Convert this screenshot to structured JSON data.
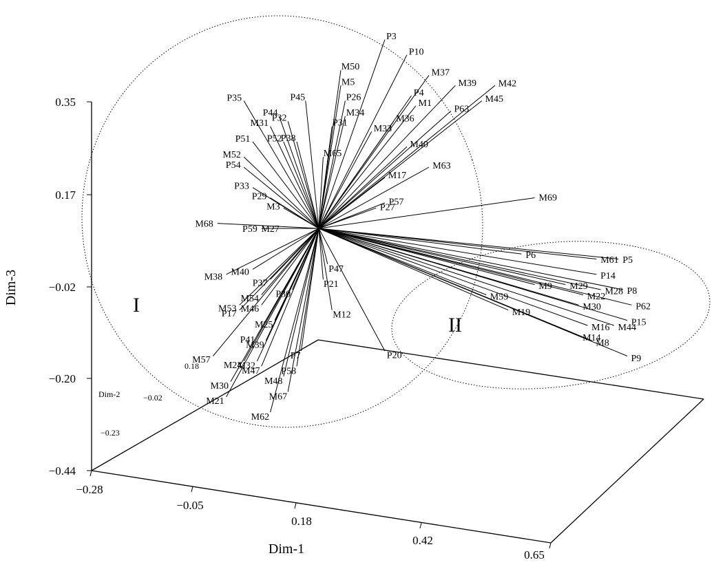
{
  "chart_data": {
    "type": "scatter",
    "projection": "3d-biplot",
    "xlabel": "Dim-1",
    "ylabel": "Dim-3",
    "zlabel": "Dim-2",
    "x_ticks": [
      "−0.28",
      "−0.05",
      "0.18",
      "0.42",
      "0.65"
    ],
    "y_ticks": [
      "0.35",
      "0.17",
      "−0.02",
      "−0.20",
      "−0.44"
    ],
    "z_ticks": [
      "0.18",
      "−0.02",
      "−0.23"
    ],
    "groups": [
      {
        "name": "I"
      },
      {
        "name": "II"
      }
    ],
    "vectors": [
      {
        "label": "P3",
        "dim1": 0.18,
        "dim3": 0.47
      },
      {
        "label": "P10",
        "dim1": 0.23,
        "dim3": 0.44
      },
      {
        "label": "M50",
        "dim1": 0.08,
        "dim3": 0.41
      },
      {
        "label": "M37",
        "dim1": 0.28,
        "dim3": 0.4
      },
      {
        "label": "M39",
        "dim1": 0.34,
        "dim3": 0.38
      },
      {
        "label": "M42",
        "dim1": 0.43,
        "dim3": 0.38
      },
      {
        "label": "M5",
        "dim1": 0.08,
        "dim3": 0.38
      },
      {
        "label": "P4",
        "dim1": 0.24,
        "dim3": 0.36
      },
      {
        "label": "M45",
        "dim1": 0.4,
        "dim3": 0.35
      },
      {
        "label": "P35",
        "dim1": -0.14,
        "dim3": 0.35
      },
      {
        "label": "P45",
        "dim1": 0.0,
        "dim3": 0.35
      },
      {
        "label": "P26",
        "dim1": 0.09,
        "dim3": 0.35
      },
      {
        "label": "M1",
        "dim1": 0.25,
        "dim3": 0.34
      },
      {
        "label": "P63",
        "dim1": 0.33,
        "dim3": 0.33
      },
      {
        "label": "P44",
        "dim1": -0.06,
        "dim3": 0.32
      },
      {
        "label": "P32",
        "dim1": -0.04,
        "dim3": 0.31
      },
      {
        "label": "M34",
        "dim1": 0.09,
        "dim3": 0.32
      },
      {
        "label": "M36",
        "dim1": 0.2,
        "dim3": 0.31
      },
      {
        "label": "M31",
        "dim1": -0.08,
        "dim3": 0.3
      },
      {
        "label": "P31",
        "dim1": 0.06,
        "dim3": 0.3
      },
      {
        "label": "M33",
        "dim1": 0.15,
        "dim3": 0.29
      },
      {
        "label": "P51",
        "dim1": -0.12,
        "dim3": 0.27
      },
      {
        "label": "P52",
        "dim1": -0.05,
        "dim3": 0.27
      },
      {
        "label": "P38",
        "dim1": -0.02,
        "dim3": 0.27
      },
      {
        "label": "M40",
        "dim1": 0.23,
        "dim3": 0.26
      },
      {
        "label": "M52",
        "dim1": -0.14,
        "dim3": 0.24
      },
      {
        "label": "M65",
        "dim1": 0.04,
        "dim3": 0.24
      },
      {
        "label": "P54",
        "dim1": -0.14,
        "dim3": 0.22
      },
      {
        "label": "M63",
        "dim1": 0.28,
        "dim3": 0.22
      },
      {
        "label": "M17",
        "dim1": 0.18,
        "dim3": 0.2
      },
      {
        "label": "P33",
        "dim1": -0.12,
        "dim3": 0.18
      },
      {
        "label": "M69",
        "dim1": 0.52,
        "dim3": 0.16
      },
      {
        "label": "P29",
        "dim1": -0.08,
        "dim3": 0.16
      },
      {
        "label": "P57",
        "dim1": 0.18,
        "dim3": 0.15
      },
      {
        "label": "M3",
        "dim1": -0.05,
        "dim3": 0.14
      },
      {
        "label": "P27",
        "dim1": 0.16,
        "dim3": 0.14
      },
      {
        "label": "M68",
        "dim1": -0.2,
        "dim3": 0.11
      },
      {
        "label": "P59",
        "dim1": -0.1,
        "dim3": 0.1
      },
      {
        "label": "M27",
        "dim1": -0.05,
        "dim3": 0.1
      },
      {
        "label": "P6",
        "dim1": 0.49,
        "dim3": 0.05
      },
      {
        "label": "P5",
        "dim1": 0.71,
        "dim3": 0.04
      },
      {
        "label": "M61",
        "dim1": 0.66,
        "dim3": 0.04
      },
      {
        "label": "P14",
        "dim1": 0.66,
        "dim3": 0.01
      },
      {
        "label": "M9",
        "dim1": 0.52,
        "dim3": -0.01
      },
      {
        "label": "M29",
        "dim1": 0.59,
        "dim3": -0.01
      },
      {
        "label": "M59",
        "dim1": 0.41,
        "dim3": -0.03
      },
      {
        "label": "P8",
        "dim1": 0.72,
        "dim3": -0.02
      },
      {
        "label": "M28",
        "dim1": 0.67,
        "dim3": -0.02
      },
      {
        "label": "M22",
        "dim1": 0.63,
        "dim3": -0.03
      },
      {
        "label": "M30",
        "dim1": 0.62,
        "dim3": -0.05
      },
      {
        "label": "P62",
        "dim1": 0.74,
        "dim3": -0.05
      },
      {
        "label": "M19",
        "dim1": 0.46,
        "dim3": -0.06
      },
      {
        "label": "P15",
        "dim1": 0.73,
        "dim3": -0.08
      },
      {
        "label": "M44",
        "dim1": 0.7,
        "dim3": -0.09
      },
      {
        "label": "M16",
        "dim1": 0.64,
        "dim3": -0.09
      },
      {
        "label": "M14",
        "dim1": 0.62,
        "dim3": -0.11
      },
      {
        "label": "M8",
        "dim1": 0.65,
        "dim3": -0.12
      },
      {
        "label": "P9",
        "dim1": 0.73,
        "dim3": -0.15
      },
      {
        "label": "M38",
        "dim1": -0.18,
        "dim3": 0.01
      },
      {
        "label": "M40",
        "dim1": -0.12,
        "dim3": 0.02
      },
      {
        "label": "P37",
        "dim1": -0.08,
        "dim3": 0.0
      },
      {
        "label": "M54",
        "dim1": -0.1,
        "dim3": -0.03
      },
      {
        "label": "M53",
        "dim1": -0.15,
        "dim3": -0.05
      },
      {
        "label": "M46",
        "dim1": -0.1,
        "dim3": -0.05
      },
      {
        "label": "P17",
        "dim1": -0.15,
        "dim3": -0.06
      },
      {
        "label": "P30",
        "dim1": -0.03,
        "dim3": -0.02
      },
      {
        "label": "M25",
        "dim1": -0.07,
        "dim3": -0.08
      },
      {
        "label": "M12",
        "dim1": 0.06,
        "dim3": -0.06
      },
      {
        "label": "P47",
        "dim1": 0.05,
        "dim3": 0.03
      },
      {
        "label": "P21",
        "dim1": 0.04,
        "dim3": 0.0
      },
      {
        "label": "P20",
        "dim1": 0.18,
        "dim3": -0.14
      },
      {
        "label": "P41",
        "dim1": -0.11,
        "dim3": -0.11
      },
      {
        "label": "M39",
        "dim1": -0.09,
        "dim3": -0.12
      },
      {
        "label": "M57",
        "dim1": -0.21,
        "dim3": -0.15
      },
      {
        "label": "M24",
        "dim1": -0.14,
        "dim3": -0.16
      },
      {
        "label": "M32",
        "dim1": -0.11,
        "dim3": -0.16
      },
      {
        "label": "M47",
        "dim1": -0.1,
        "dim3": -0.17
      },
      {
        "label": "P7",
        "dim1": -0.01,
        "dim3": -0.14
      },
      {
        "label": "P58",
        "dim1": -0.02,
        "dim3": -0.17
      },
      {
        "label": "M30",
        "dim1": -0.17,
        "dim3": -0.2
      },
      {
        "label": "M21",
        "dim1": -0.18,
        "dim3": -0.23
      },
      {
        "label": "M48",
        "dim1": -0.05,
        "dim3": -0.19
      },
      {
        "label": "M67",
        "dim1": -0.04,
        "dim3": -0.22
      },
      {
        "label": "M62",
        "dim1": -0.08,
        "dim3": -0.26
      }
    ]
  }
}
